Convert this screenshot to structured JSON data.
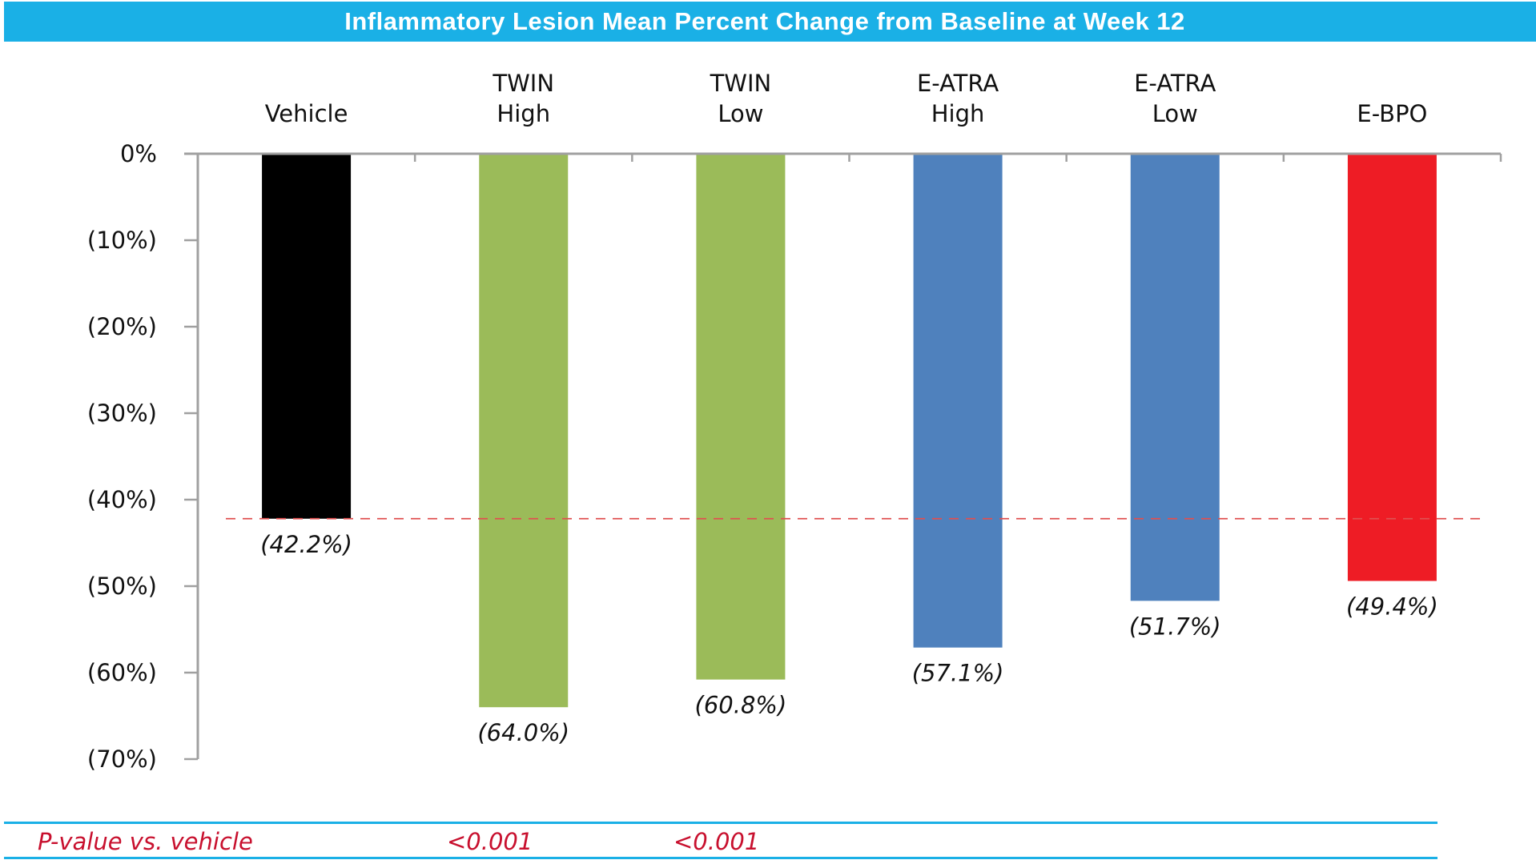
{
  "chart_data": {
    "type": "bar",
    "title": "Inflammatory Lesion Mean Percent Change from Baseline at Week 12",
    "categories": [
      {
        "lines": [
          "Vehicle"
        ]
      },
      {
        "lines": [
          "TWIN",
          "High"
        ]
      },
      {
        "lines": [
          "TWIN",
          "Low"
        ]
      },
      {
        "lines": [
          "E-ATRA",
          "High"
        ]
      },
      {
        "lines": [
          "E-ATRA",
          "Low"
        ]
      },
      {
        "lines": [
          "E-BPO"
        ]
      }
    ],
    "values": [
      -42.2,
      -64.0,
      -60.8,
      -57.1,
      -51.7,
      -49.4
    ],
    "data_labels": [
      "(42.2%)",
      "(64.0%)",
      "(60.8%)",
      "(57.1%)",
      "(51.7%)",
      "(49.4%)"
    ],
    "colors": [
      "#000000",
      "#9bbb59",
      "#9bbb59",
      "#4f81bd",
      "#4f81bd",
      "#ee1c25"
    ],
    "ylim": [
      -70,
      0
    ],
    "yticks": [
      0,
      -10,
      -20,
      -30,
      -40,
      -50,
      -60,
      -70
    ],
    "ytick_labels": [
      "0%",
      "(10%)",
      "(20%)",
      "(30%)",
      "(40%)",
      "(50%)",
      "(60%)",
      "(70%)"
    ],
    "reference_line": {
      "value": -42.2,
      "style": "dashed",
      "color": "#e05050"
    },
    "category_axis_position": "top",
    "xlabel": "",
    "ylabel": "",
    "grid": false
  },
  "pvalue_row": {
    "label": "P-value vs. vehicle",
    "values": [
      "<0.001",
      "<0.001"
    ]
  }
}
